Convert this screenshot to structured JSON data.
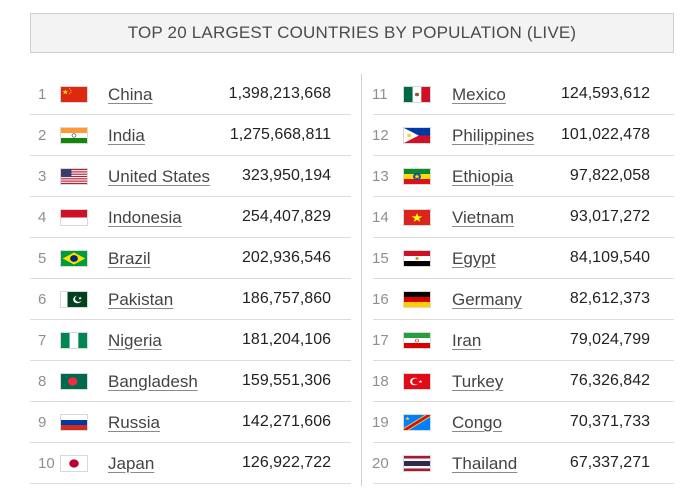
{
  "title": "TOP 20 LARGEST COUNTRIES BY POPULATION (LIVE)",
  "left": [
    {
      "rank": "1",
      "flag": "china-flag",
      "name": "China",
      "population": "1,398,213,668"
    },
    {
      "rank": "2",
      "flag": "india-flag",
      "name": "India",
      "population": "1,275,668,811"
    },
    {
      "rank": "3",
      "flag": "united-states-flag",
      "name": "United States",
      "population": "323,950,194"
    },
    {
      "rank": "4",
      "flag": "indonesia-flag",
      "name": "Indonesia",
      "population": "254,407,829"
    },
    {
      "rank": "5",
      "flag": "brazil-flag",
      "name": "Brazil",
      "population": "202,936,546"
    },
    {
      "rank": "6",
      "flag": "pakistan-flag",
      "name": "Pakistan",
      "population": "186,757,860"
    },
    {
      "rank": "7",
      "flag": "nigeria-flag",
      "name": "Nigeria",
      "population": "181,204,106"
    },
    {
      "rank": "8",
      "flag": "bangladesh-flag",
      "name": "Bangladesh",
      "population": "159,551,306"
    },
    {
      "rank": "9",
      "flag": "russia-flag",
      "name": "Russia",
      "population": "142,271,606"
    },
    {
      "rank": "10",
      "flag": "japan-flag",
      "name": "Japan",
      "population": "126,922,722"
    }
  ],
  "right": [
    {
      "rank": "11",
      "flag": "mexico-flag",
      "name": "Mexico",
      "population": "124,593,612"
    },
    {
      "rank": "12",
      "flag": "philippines-flag",
      "name": "Philippines",
      "population": "101,022,478"
    },
    {
      "rank": "13",
      "flag": "ethiopia-flag",
      "name": "Ethiopia",
      "population": "97,822,058"
    },
    {
      "rank": "14",
      "flag": "vietnam-flag",
      "name": "Vietnam",
      "population": "93,017,272"
    },
    {
      "rank": "15",
      "flag": "egypt-flag",
      "name": "Egypt",
      "population": "84,109,540"
    },
    {
      "rank": "16",
      "flag": "germany-flag",
      "name": "Germany",
      "population": "82,612,373"
    },
    {
      "rank": "17",
      "flag": "iran-flag",
      "name": "Iran",
      "population": "79,024,799"
    },
    {
      "rank": "18",
      "flag": "turkey-flag",
      "name": "Turkey",
      "population": "76,326,842"
    },
    {
      "rank": "19",
      "flag": "congo-flag",
      "name": "Congo",
      "population": "70,371,733"
    },
    {
      "rank": "20",
      "flag": "thailand-flag",
      "name": "Thailand",
      "population": "67,337,271"
    }
  ]
}
